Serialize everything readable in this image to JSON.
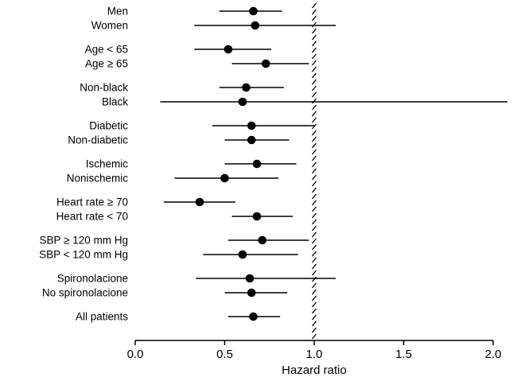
{
  "figure": {
    "background_color": "#ffffff",
    "ink_color": "#000000"
  },
  "chart_data": {
    "type": "scatter",
    "variant": "forest-plot",
    "title": "",
    "xlabel": "Hazard ratio",
    "ylabel": "",
    "xlim": [
      0.0,
      2.0
    ],
    "x_ticks": [
      0.0,
      0.5,
      1.0,
      1.5,
      2.0
    ],
    "x_tick_labels": [
      "0.0",
      "0.5",
      "1.0",
      "1.5",
      "2.0"
    ],
    "reference_line": 1.0,
    "reference_line_style": "hatched-dashed",
    "grid": false,
    "legend": "none",
    "marker": "filled-circle",
    "marker_color": "#000000",
    "ci_line_color": "#000000",
    "groups": [
      {
        "rows": [
          {
            "label": "Men",
            "estimate": 0.66,
            "ci_low": 0.47,
            "ci_high": 0.82
          },
          {
            "label": "Women",
            "estimate": 0.67,
            "ci_low": 0.33,
            "ci_high": 1.12
          }
        ]
      },
      {
        "rows": [
          {
            "label": "Age < 65",
            "estimate": 0.52,
            "ci_low": 0.33,
            "ci_high": 0.76
          },
          {
            "label": "Age ≥ 65",
            "estimate": 0.73,
            "ci_low": 0.54,
            "ci_high": 0.97
          }
        ]
      },
      {
        "rows": [
          {
            "label": "Non-black",
            "estimate": 0.62,
            "ci_low": 0.47,
            "ci_high": 0.83
          },
          {
            "label": "Black",
            "estimate": 0.6,
            "ci_low": 0.14,
            "ci_high": 2.08
          }
        ]
      },
      {
        "rows": [
          {
            "label": "Diabetic",
            "estimate": 0.65,
            "ci_low": 0.43,
            "ci_high": 1.0
          },
          {
            "label": "Non-diabetic",
            "estimate": 0.65,
            "ci_low": 0.5,
            "ci_high": 0.86
          }
        ]
      },
      {
        "rows": [
          {
            "label": "Ischemic",
            "estimate": 0.68,
            "ci_low": 0.5,
            "ci_high": 0.9
          },
          {
            "label": "Nonischemic",
            "estimate": 0.5,
            "ci_low": 0.22,
            "ci_high": 0.8
          }
        ]
      },
      {
        "rows": [
          {
            "label": "Heart rate ≥ 70",
            "estimate": 0.36,
            "ci_low": 0.16,
            "ci_high": 0.56
          },
          {
            "label": "Heart rate < 70",
            "estimate": 0.68,
            "ci_low": 0.54,
            "ci_high": 0.88
          }
        ]
      },
      {
        "rows": [
          {
            "label": "SBP ≥ 120 mm Hg",
            "estimate": 0.71,
            "ci_low": 0.52,
            "ci_high": 0.97
          },
          {
            "label": "SBP < 120 mm Hg",
            "estimate": 0.6,
            "ci_low": 0.38,
            "ci_high": 0.91
          }
        ]
      },
      {
        "rows": [
          {
            "label": "Spironolacione",
            "estimate": 0.64,
            "ci_low": 0.34,
            "ci_high": 1.12
          },
          {
            "label": "No spironolacione",
            "estimate": 0.65,
            "ci_low": 0.5,
            "ci_high": 0.85
          }
        ]
      },
      {
        "rows": [
          {
            "label": "All patients",
            "estimate": 0.66,
            "ci_low": 0.52,
            "ci_high": 0.81
          }
        ]
      }
    ]
  }
}
